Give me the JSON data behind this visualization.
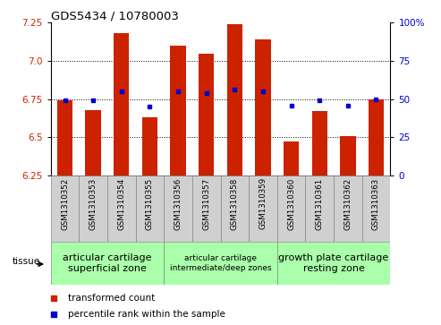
{
  "title": "GDS5434 / 10780003",
  "samples": [
    "GSM1310352",
    "GSM1310353",
    "GSM1310354",
    "GSM1310355",
    "GSM1310356",
    "GSM1310357",
    "GSM1310358",
    "GSM1310359",
    "GSM1310360",
    "GSM1310361",
    "GSM1310362",
    "GSM1310363"
  ],
  "red_values": [
    6.74,
    6.68,
    7.18,
    6.63,
    7.1,
    7.05,
    7.24,
    7.14,
    6.47,
    6.67,
    6.51,
    6.75
  ],
  "blue_values": [
    6.74,
    6.74,
    6.8,
    6.7,
    6.8,
    6.79,
    6.81,
    6.8,
    6.71,
    6.74,
    6.71,
    6.75
  ],
  "ylim_left": [
    6.25,
    7.25
  ],
  "ylim_right": [
    0,
    100
  ],
  "yticks_left": [
    6.25,
    6.5,
    6.75,
    7.0,
    7.25
  ],
  "yticks_right": [
    0,
    25,
    50,
    75,
    100
  ],
  "red_color": "#cc2200",
  "blue_color": "#0000cc",
  "bar_width": 0.55,
  "baseline": 6.25,
  "groups": [
    {
      "label": "articular cartilage\nsuperficial zone",
      "start": 0,
      "end": 3,
      "fontsize": 8
    },
    {
      "label": "articular cartilage\nintermediate/deep zones",
      "start": 4,
      "end": 7,
      "fontsize": 6.5
    },
    {
      "label": "growth plate cartilage\nresting zone",
      "start": 8,
      "end": 11,
      "fontsize": 8
    }
  ],
  "group_color": "#aaffaa",
  "xtick_bg": "#d0d0d0",
  "legend_red": "transformed count",
  "legend_blue": "percentile rank within the sample",
  "tissue_label": "tissue",
  "dotted_yticks": [
    6.5,
    6.75,
    7.0
  ]
}
